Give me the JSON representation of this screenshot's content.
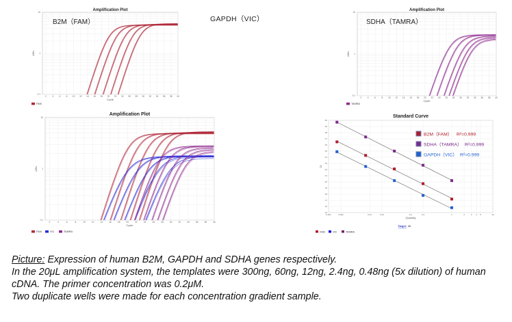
{
  "gapdh_label": "GAPDH（VIC）",
  "amp_plots": [
    {
      "title": "Amplification Plot",
      "gene_label": "B2M（FAM）",
      "xlabel": "Cycle",
      "ylabel": "ΔRn",
      "x_ticks": [
        2,
        4,
        6,
        8,
        10,
        12,
        14,
        16,
        18,
        20,
        22,
        24,
        26,
        28,
        30,
        32,
        34,
        36,
        38,
        40
      ],
      "y_ticks": [
        "0.1",
        "1",
        "10"
      ],
      "ylim": [
        0.1,
        10
      ],
      "y_scale": "log",
      "legend": [
        "FAM"
      ],
      "series": [
        {
          "name": "FAM",
          "color": "#b02a3a",
          "slope": 1.6,
          "crossings": [
            13.8,
            14.0,
            16.0,
            16.2,
            18.4,
            18.6,
            20.6,
            20.8,
            22.7,
            22.9
          ],
          "plateaus": [
            4.9,
            4.8,
            5.0,
            4.9,
            5.1,
            5.0,
            5.2,
            5.1,
            5.3,
            5.2
          ]
        }
      ]
    },
    {
      "title": "Amplification Plot",
      "gene_label": "SDHA（TAMRA）",
      "xlabel": "Cycle",
      "ylabel": "ΔRn",
      "x_ticks": [
        2,
        4,
        6,
        8,
        10,
        12,
        14,
        16,
        18,
        20,
        22,
        24,
        26,
        28,
        30,
        32,
        34,
        36,
        38,
        40
      ],
      "y_ticks": [
        "0.1",
        "1",
        "10"
      ],
      "ylim": [
        0.1,
        10
      ],
      "y_scale": "log",
      "legend": [
        "TAMRA"
      ],
      "series": [
        {
          "name": "TAMRA",
          "color": "#8e2a8e",
          "slope": 1.7,
          "crossings": [
            21.2,
            21.4,
            23.3,
            23.5,
            25.3,
            25.5,
            26.7,
            26.9,
            27.8,
            28.0
          ],
          "plateaus": [
            2.9,
            2.8,
            2.9,
            2.8,
            2.7,
            2.6,
            2.5,
            2.4,
            2.3,
            2.2
          ]
        }
      ]
    },
    {
      "title": "Amplification Plot",
      "gene_label": "",
      "xlabel": "Cycle",
      "ylabel": "ΔRn",
      "x_ticks": [
        2,
        4,
        6,
        8,
        10,
        12,
        14,
        16,
        18,
        20,
        22,
        24,
        26,
        28,
        30,
        32,
        34,
        36,
        38,
        40
      ],
      "y_ticks": [
        "0.1",
        "1",
        "10"
      ],
      "ylim": [
        0.1,
        10
      ],
      "y_scale": "log",
      "legend": [
        "FAM",
        "VIC",
        "TAMRA"
      ],
      "series": [
        {
          "name": "FAM",
          "color": "#b02a3a",
          "slope": 1.6,
          "crossings": [
            13.8,
            14.0,
            16.0,
            16.2,
            18.4,
            18.6,
            20.6,
            20.8,
            22.7,
            22.9
          ],
          "plateaus": [
            4.9,
            4.8,
            5.0,
            4.9,
            5.1,
            5.0,
            5.2,
            5.1,
            5.3,
            5.2
          ]
        },
        {
          "name": "VIC",
          "color": "#2b2bd6",
          "slope": 1.9,
          "crossings": [
            14.5,
            14.7,
            16.8,
            17.0,
            19.3,
            19.5,
            21.6,
            21.8,
            24.2,
            24.4
          ],
          "plateaus": [
            1.75,
            1.7,
            1.8,
            1.75,
            1.8,
            1.75,
            1.8,
            1.7,
            1.75,
            1.6
          ]
        },
        {
          "name": "TAMRA",
          "color": "#8e2a8e",
          "slope": 1.7,
          "crossings": [
            21.6,
            21.8,
            23.7,
            23.9,
            25.6,
            25.8,
            26.9,
            27.1,
            28.1,
            28.3
          ],
          "plateaus": [
            2.8,
            2.7,
            2.8,
            2.7,
            2.6,
            2.5,
            2.4,
            2.3,
            2.2,
            2.1
          ]
        }
      ]
    }
  ],
  "chart_data": {
    "type": "scatter",
    "title": "Standard Curve",
    "xlabel": "Quantity",
    "ylabel": "Ct",
    "x_scale": "log",
    "xlim": [
      0.001,
      10
    ],
    "ylim": [
      15,
      30
    ],
    "x_ticks": [
      "0.001",
      "0.002",
      "0.01",
      "0.02",
      "0.1",
      "0.2",
      "1",
      "2",
      "3",
      "4",
      "5",
      "10"
    ],
    "x_tick_values": [
      0.001,
      0.002,
      0.01,
      0.02,
      0.1,
      0.2,
      1,
      2,
      3,
      4,
      5,
      10
    ],
    "y_ticks": [
      15,
      16,
      17,
      18,
      19,
      20,
      21,
      22,
      23,
      24,
      25,
      26,
      27,
      28,
      29,
      30
    ],
    "grid": true,
    "legend_placement": "top-right",
    "target_label": "Target:",
    "target_value": "All",
    "bottom_legend": [
      "FAM",
      "VIC",
      "TAMRA"
    ],
    "series": [
      {
        "name": "B2M（FAM）",
        "r2_label": "R²=0.999",
        "color": "#b01c2a",
        "x": [
          0.0016,
          0.008,
          0.04,
          0.2,
          1
        ],
        "y": [
          26.5,
          24.3,
          22.1,
          19.7,
          17.2
        ]
      },
      {
        "name": "SDHA（TAMRA）",
        "r2_label": "R²=0.999",
        "color": "#7a2a8a",
        "x": [
          0.0016,
          0.008,
          0.04,
          0.2,
          1
        ],
        "y": [
          29.7,
          27.3,
          25.0,
          22.7,
          20.2
        ]
      },
      {
        "name": "GAPDH（VIC）",
        "r2_label": "R²=0.999",
        "color": "#2060d0",
        "x": [
          0.0016,
          0.008,
          0.04,
          0.2,
          1
        ],
        "y": [
          24.9,
          22.5,
          20.2,
          17.8,
          15.8
        ]
      }
    ]
  },
  "caption": {
    "lead": "Picture:",
    "line1": " Expression of human B2M, GAPDH and SDHA genes respectively.",
    "line2": "In the 20μL amplification system, the templates were 300ng, 60ng, 12ng, 2.4ng, 0.48ng (5x dilution) of human cDNA. The primer concentration was 0.2μM.",
    "line3": "Two duplicate wells were made for each concentration gradient sample."
  }
}
